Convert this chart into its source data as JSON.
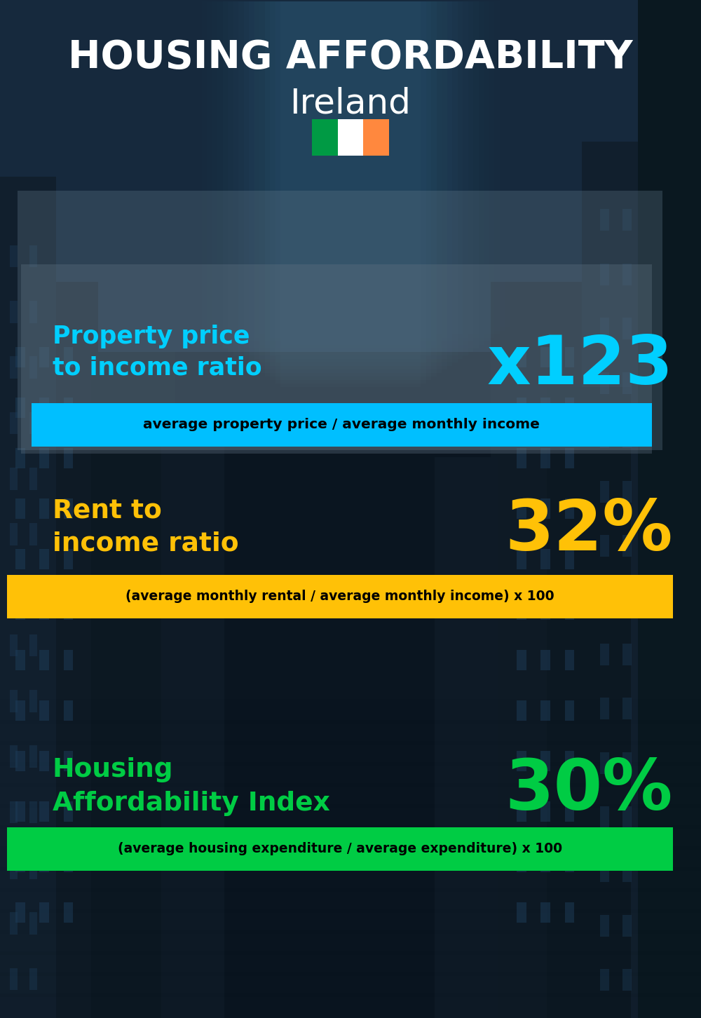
{
  "title_main": "HOUSING AFFORDABILITY",
  "title_sub": "Ireland",
  "bg_color": "#0d1b2a",
  "section1_label": "Property price\nto income ratio",
  "section1_value": "x123",
  "section1_label_color": "#00cfff",
  "section1_value_color": "#00cfff",
  "section1_bar_text": "average property price / average monthly income",
  "section1_bar_color": "#00bfff",
  "section1_bar_text_color": "#000000",
  "section2_label": "Rent to\nincome ratio",
  "section2_value": "32%",
  "section2_label_color": "#ffc107",
  "section2_value_color": "#ffc107",
  "section2_bar_text": "(average monthly rental / average monthly income) x 100",
  "section2_bar_color": "#ffc107",
  "section2_bar_text_color": "#000000",
  "section3_label": "Housing\nAffordability Index",
  "section3_value": "30%",
  "section3_label_color": "#00cc44",
  "section3_value_color": "#00cc44",
  "section3_bar_text": "(average housing expenditure / average expenditure) x 100",
  "section3_bar_color": "#00cc44",
  "section3_bar_text_color": "#000000",
  "flag_green": "#009A44",
  "flag_white": "#FFFFFF",
  "flag_orange": "#FF883E",
  "overlay1_color": "#4a6070",
  "overlay1_alpha": 0.45
}
